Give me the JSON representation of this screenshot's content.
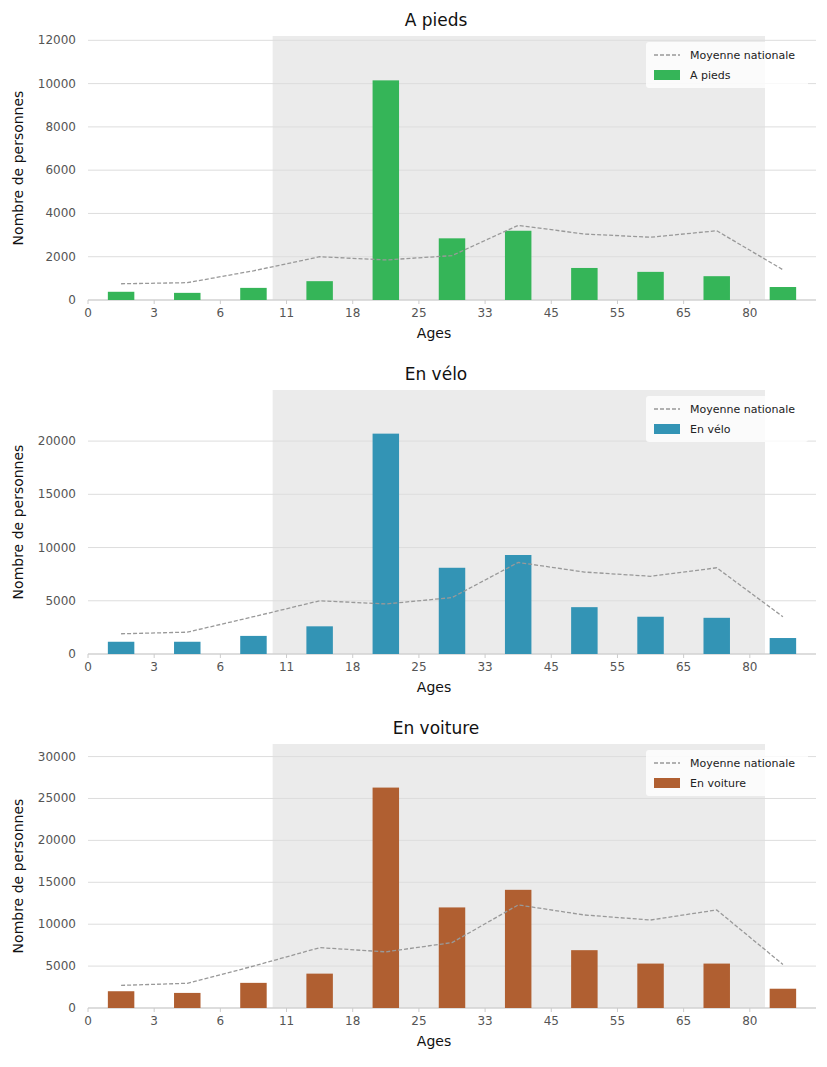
{
  "chart_data": [
    {
      "type": "bar",
      "title": "A pieds",
      "x_label": "Ages",
      "y_label": "Nombre de personnes",
      "categories": [
        "0",
        "3",
        "6",
        "11",
        "18",
        "25",
        "33",
        "45",
        "55",
        "65",
        "80"
      ],
      "series": [
        {
          "name": "Moyenne nationale",
          "type": "line",
          "line_style": "dashed",
          "color": "#999999",
          "values": [
            750,
            800,
            1350,
            2000,
            1850,
            2050,
            3450,
            3050,
            2900,
            3200,
            1400
          ]
        },
        {
          "name": "A pieds",
          "type": "bar",
          "color": "#35b558",
          "values": [
            380,
            330,
            560,
            870,
            10150,
            2850,
            3200,
            1480,
            1300,
            1100,
            600
          ]
        }
      ],
      "ylim": [
        0,
        12200
      ],
      "yticks": [
        0,
        2000,
        4000,
        6000,
        8000,
        10000,
        12000
      ],
      "grid": true,
      "legend": "upper right"
    },
    {
      "type": "bar",
      "title": "En vélo",
      "x_label": "Ages",
      "y_label": "Nombre de personnes",
      "categories": [
        "0",
        "3",
        "6",
        "11",
        "18",
        "25",
        "33",
        "45",
        "55",
        "65",
        "80"
      ],
      "series": [
        {
          "name": "Moyenne nationale",
          "type": "line",
          "line_style": "dashed",
          "color": "#999999",
          "values": [
            1900,
            2050,
            3500,
            5000,
            4700,
            5300,
            8600,
            7700,
            7300,
            8100,
            3500
          ]
        },
        {
          "name": "En vélo",
          "type": "bar",
          "color": "#3394b5",
          "values": [
            1150,
            1150,
            1700,
            2600,
            20700,
            8100,
            9300,
            4400,
            3500,
            3400,
            1500
          ]
        }
      ],
      "ylim": [
        0,
        24800
      ],
      "yticks": [
        0,
        5000,
        10000,
        15000,
        20000
      ],
      "grid": true,
      "legend": "upper right"
    },
    {
      "type": "bar",
      "title": "En voiture",
      "x_label": "Ages",
      "y_label": "Nombre de personnes",
      "categories": [
        "0",
        "3",
        "6",
        "11",
        "18",
        "25",
        "33",
        "45",
        "55",
        "65",
        "80"
      ],
      "series": [
        {
          "name": "Moyenne nationale",
          "type": "line",
          "line_style": "dashed",
          "color": "#999999",
          "values": [
            2700,
            2950,
            5000,
            7200,
            6700,
            7800,
            12300,
            11100,
            10500,
            11700,
            5200
          ]
        },
        {
          "name": "En voiture",
          "type": "bar",
          "color": "#b05f31",
          "values": [
            2000,
            1800,
            3000,
            4100,
            26300,
            12000,
            14100,
            6900,
            5300,
            5300,
            2300
          ]
        }
      ],
      "ylim": [
        0,
        31500
      ],
      "yticks": [
        0,
        5000,
        10000,
        15000,
        20000,
        25000,
        30000
      ],
      "grid": true,
      "legend": "upper right"
    }
  ]
}
